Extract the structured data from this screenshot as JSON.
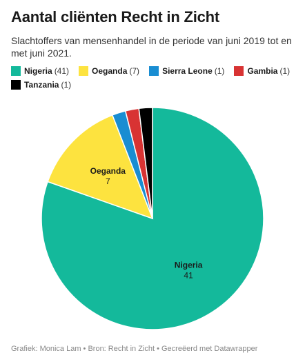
{
  "title": "Aantal cliënten Recht in Zicht",
  "subtitle": "Slachtoffers van mensenhandel in de periode van juni 2019 tot en met juni 2021.",
  "footer": "Grafiek: Monica Lam • Bron: Recht in Zicht • Gecreëerd met Datawrapper",
  "chart_data": {
    "type": "pie",
    "title": "Aantal cliënten Recht in Zicht",
    "subtitle": "Slachtoffers van mensenhandel in de periode van juni 2019 tot en met juni 2021.",
    "legend_position": "top",
    "slices": [
      {
        "name": "Nigeria",
        "value": 41,
        "count_label": "(41)",
        "color": "#14b99b",
        "show_label": true
      },
      {
        "name": "Oeganda",
        "value": 7,
        "count_label": "(7)",
        "color": "#fde33f",
        "show_label": true
      },
      {
        "name": "Sierra Leone",
        "value": 1,
        "count_label": "(1)",
        "color": "#198dd2",
        "show_label": false
      },
      {
        "name": "Gambia",
        "value": 1,
        "count_label": "(1)",
        "color": "#d83333",
        "show_label": false
      },
      {
        "name": "Tanzania",
        "value": 1,
        "count_label": "(1)",
        "color": "#000000",
        "show_label": false
      }
    ]
  }
}
